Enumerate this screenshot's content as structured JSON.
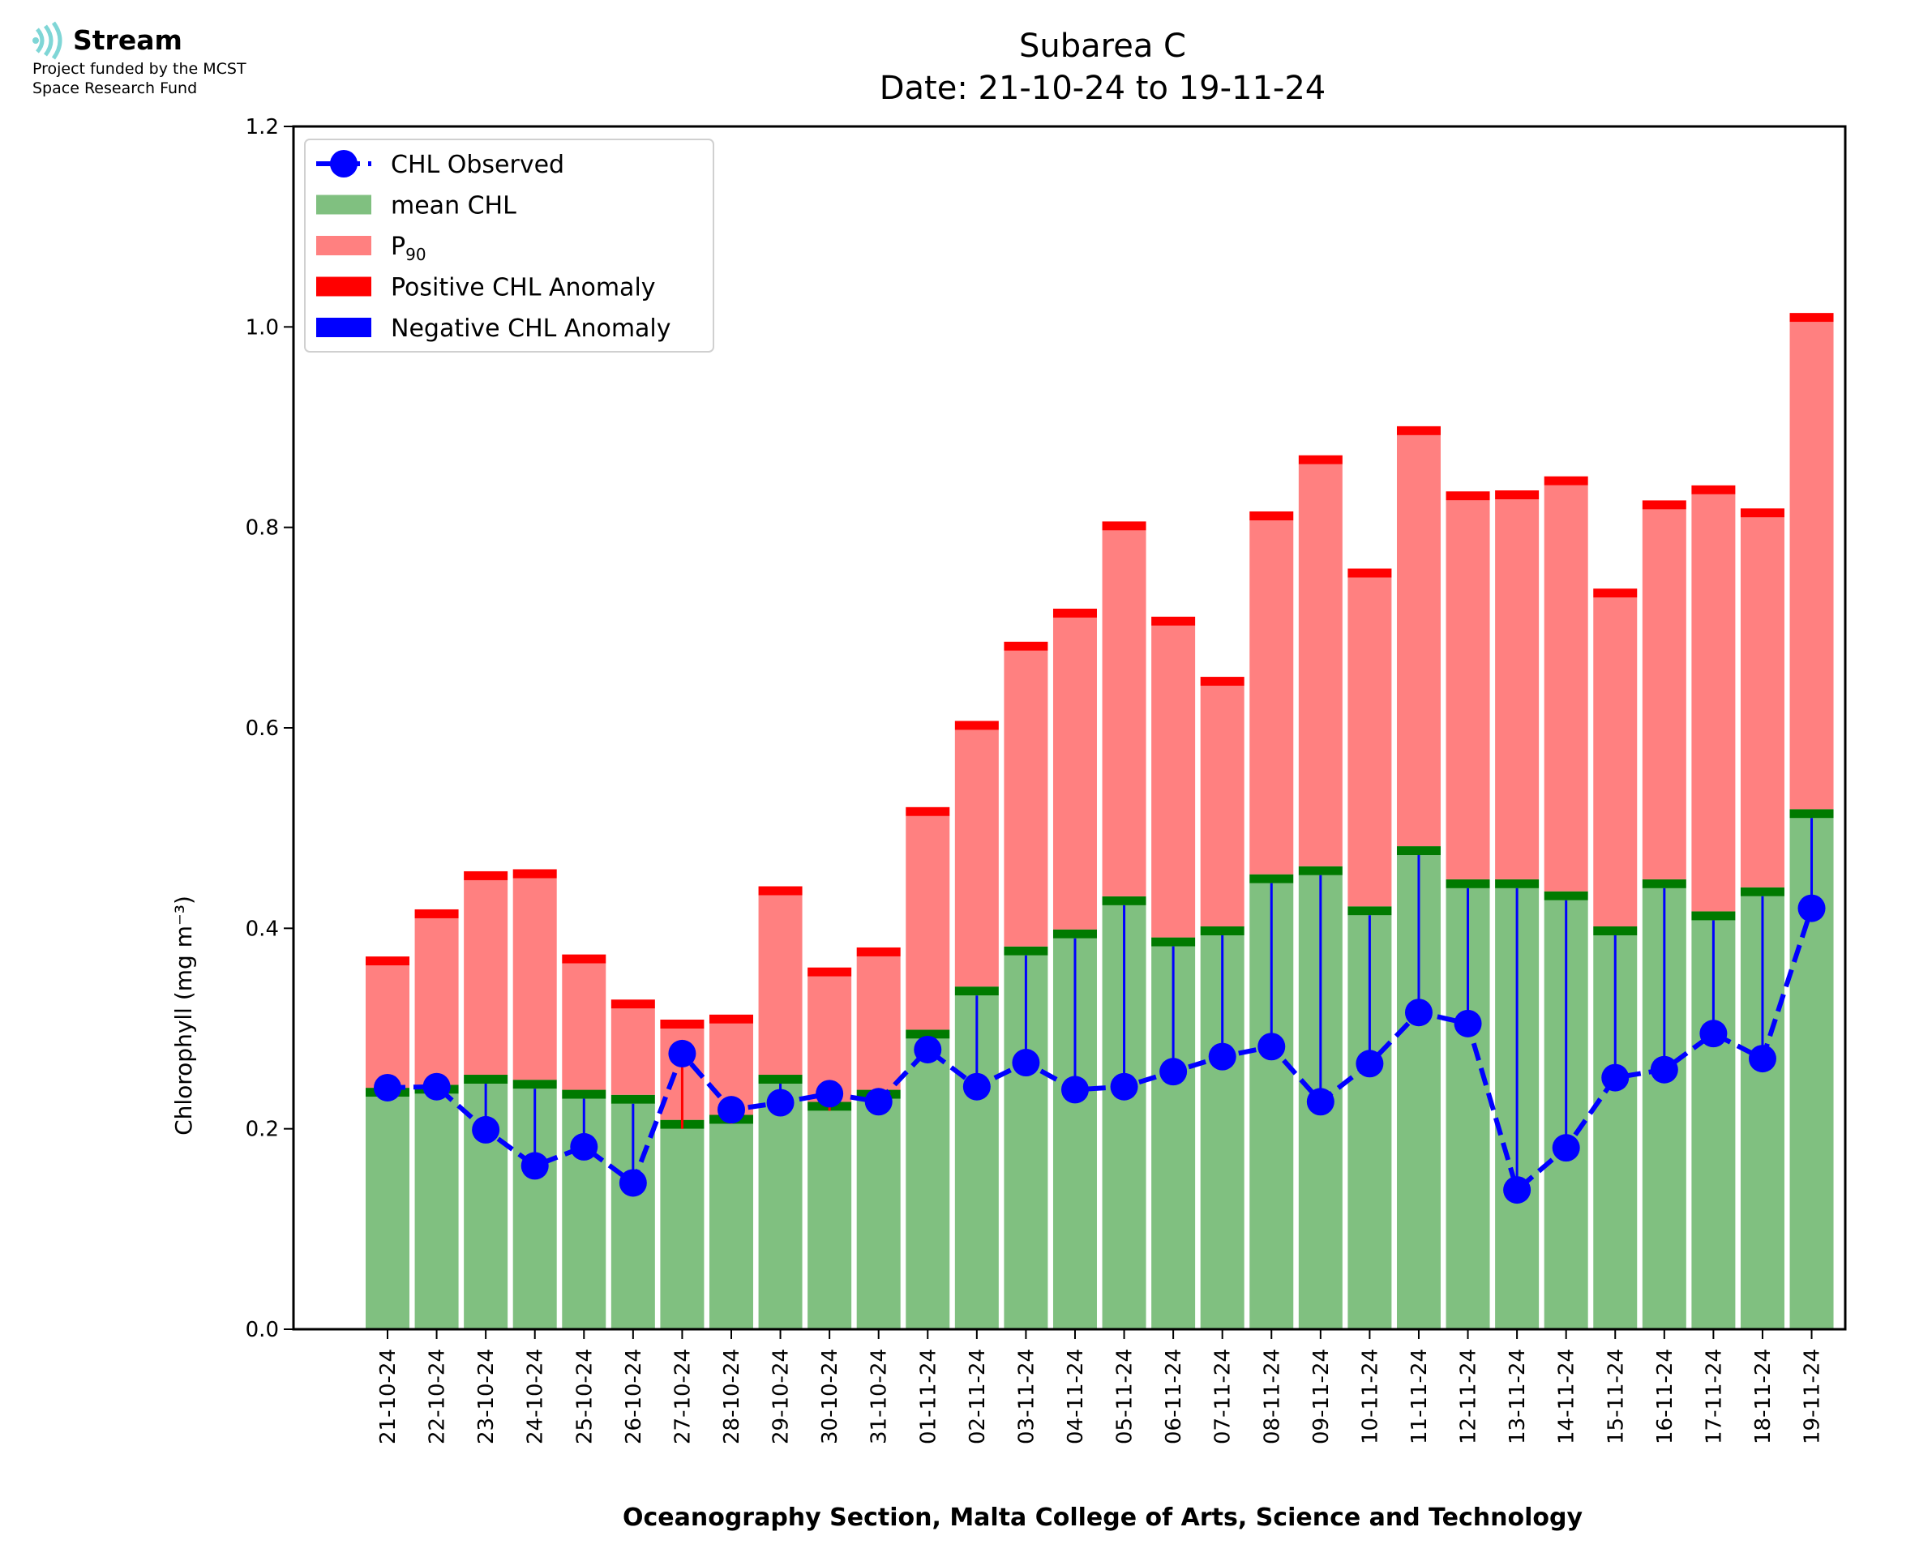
{
  "logo": {
    "name": "Stream",
    "line1": "Project funded by the MCST",
    "line2": "Space Research Fund"
  },
  "chart_data": {
    "type": "bar",
    "title": "Subarea C",
    "subtitle": "Date: 21-10-24 to 19-11-24",
    "ylabel": "Chlorophyll (mg m⁻³)",
    "xlabel": "Oceanography Section, Malta College of Arts, Science and Technology",
    "ylim": [
      0,
      1.2
    ],
    "yticks": [
      "0.0",
      "0.2",
      "0.4",
      "0.6",
      "0.8",
      "1.0",
      "1.2"
    ],
    "grid": false,
    "legend_position": "top-left",
    "legend": [
      {
        "label": "CHL Observed",
        "kind": "line-marker",
        "color": "#0000ff"
      },
      {
        "label": "mean CHL",
        "kind": "patch",
        "color": "#80c080"
      },
      {
        "label": "P",
        "sub": "90",
        "kind": "patch",
        "color": "#ff8080"
      },
      {
        "label": "Positive CHL Anomaly",
        "kind": "patch",
        "color": "#ff0000"
      },
      {
        "label": "Negative CHL Anomaly",
        "kind": "patch",
        "color": "#0000ff"
      }
    ],
    "categories": [
      "21-10-24",
      "22-10-24",
      "23-10-24",
      "24-10-24",
      "25-10-24",
      "26-10-24",
      "27-10-24",
      "28-10-24",
      "29-10-24",
      "30-10-24",
      "31-10-24",
      "01-11-24",
      "02-11-24",
      "03-11-24",
      "04-11-24",
      "05-11-24",
      "06-11-24",
      "07-11-24",
      "08-11-24",
      "09-11-24",
      "10-11-24",
      "11-11-24",
      "12-11-24",
      "13-11-24",
      "14-11-24",
      "15-11-24",
      "16-11-24",
      "17-11-24",
      "18-11-24",
      "19-11-24"
    ],
    "series": [
      {
        "name": "mean CHL",
        "color": "#80c080",
        "edge": "#007a00",
        "values": [
          0.232,
          0.235,
          0.245,
          0.24,
          0.23,
          0.225,
          0.2,
          0.205,
          0.245,
          0.218,
          0.23,
          0.29,
          0.333,
          0.373,
          0.39,
          0.423,
          0.382,
          0.393,
          0.445,
          0.453,
          0.413,
          0.473,
          0.44,
          0.44,
          0.428,
          0.393,
          0.44,
          0.408,
          0.432,
          0.51
        ]
      },
      {
        "name": "P",
        "sub": "90",
        "color": "#ff8080",
        "edge": "#ff0000",
        "values": [
          0.363,
          0.41,
          0.448,
          0.45,
          0.365,
          0.32,
          0.3,
          0.305,
          0.433,
          0.352,
          0.372,
          0.512,
          0.598,
          0.677,
          0.71,
          0.797,
          0.702,
          0.642,
          0.807,
          0.863,
          0.75,
          0.892,
          0.827,
          0.828,
          0.842,
          0.73,
          0.818,
          0.833,
          0.81,
          1.005
        ]
      },
      {
        "name": "CHL Observed",
        "color": "#0000ff",
        "values": [
          0.241,
          0.242,
          0.199,
          0.163,
          0.182,
          0.146,
          0.275,
          0.219,
          0.226,
          0.235,
          0.227,
          0.279,
          0.242,
          0.266,
          0.239,
          0.242,
          0.257,
          0.272,
          0.282,
          0.227,
          0.265,
          0.316,
          0.305,
          0.139,
          0.181,
          0.251,
          0.259,
          0.295,
          0.27,
          0.42
        ]
      }
    ]
  }
}
